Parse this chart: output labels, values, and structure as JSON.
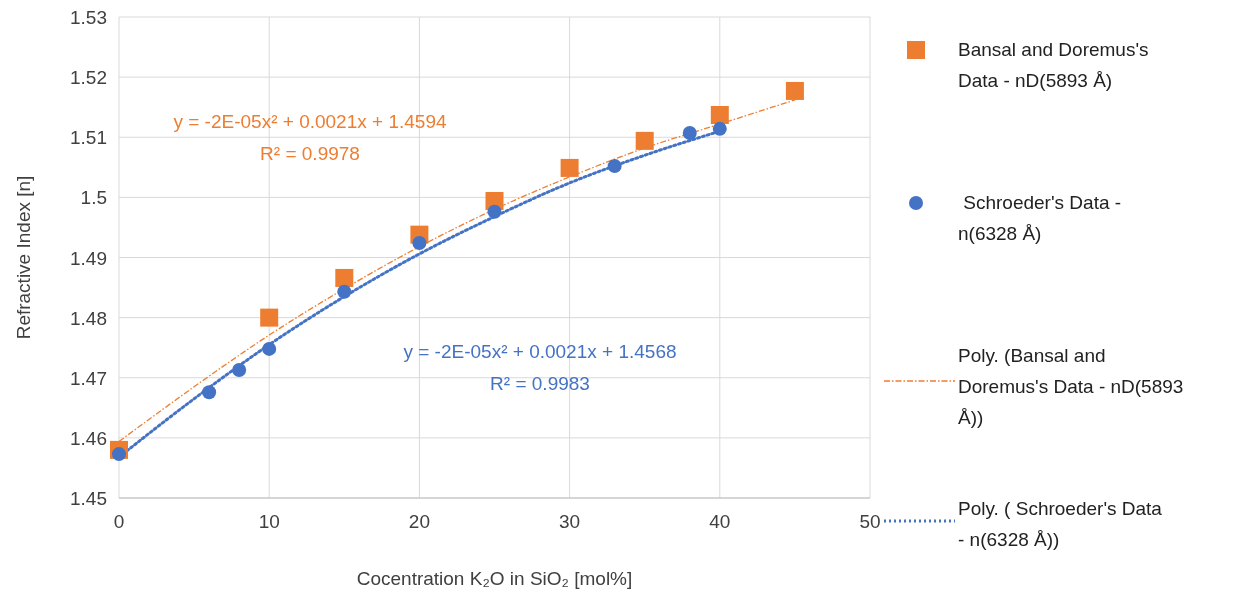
{
  "chart_data": {
    "type": "scatter",
    "xlabel": "Cocentration K₂O in SiO₂ [mol%]",
    "ylabel": "Refractive Index [n]",
    "xlim": [
      0,
      50
    ],
    "xticks": [
      0,
      10,
      20,
      30,
      40,
      50
    ],
    "ylim": [
      1.45,
      1.53
    ],
    "yticks": [
      1.45,
      {
        "value": 1.46,
        "label": "1.46"
      },
      1.47,
      1.48,
      1.49,
      {
        "value": 1.5,
        "label": "1.5"
      },
      1.51,
      1.52,
      1.53
    ],
    "grid": true,
    "legend": "right",
    "series": [
      {
        "name": "Bansal and Doremus's Data - nD(5893 Å)",
        "color": "#ed7d31",
        "marker": "square",
        "x": [
          0,
          10,
          15,
          20,
          25,
          30,
          35,
          40,
          45
        ],
        "values": [
          1.458,
          1.48,
          1.4866,
          1.4938,
          1.4994,
          1.5049,
          1.5094,
          1.5137,
          1.5177
        ]
      },
      {
        "name": " Schroeder's Data - n(6328 Å)",
        "color": "#4472c4",
        "marker": "circle",
        "x": [
          0,
          6,
          8,
          10,
          15,
          20,
          25,
          33,
          38,
          40
        ],
        "values": [
          1.4573,
          1.4676,
          1.4713,
          1.4748,
          1.4843,
          1.4924,
          1.4976,
          1.5052,
          1.5107,
          1.5114
        ]
      },
      {
        "name": "Poly. (Bansal and Doremus's Data - nD(5893 Å))",
        "type": "line",
        "color": "#ed7d31",
        "line_style": "dashdot",
        "x": [
          0,
          5,
          10,
          15,
          20,
          25,
          30,
          35,
          40,
          45
        ],
        "values": [
          1.4594,
          1.4685,
          1.4771,
          1.4848,
          1.4918,
          1.498,
          1.5034,
          1.5082,
          1.5122,
          1.5162
        ]
      },
      {
        "name": "Poly. ( Schroeder's Data - n(6328 Å))",
        "type": "line",
        "color": "#4472c4",
        "line_style": "dotted",
        "x": [
          0,
          5,
          10,
          15,
          20,
          25,
          30,
          35,
          40
        ],
        "values": [
          1.4568,
          1.4665,
          1.4755,
          1.4835,
          1.4906,
          1.4968,
          1.5024,
          1.507,
          1.511
        ]
      }
    ],
    "annotations": [
      "y = -2E-05x² + 0.0021x + 1.4594",
      "R² = 0.9978",
      "y = -2E-05x² + 0.0021x + 1.4568",
      "R² = 0.9983"
    ]
  }
}
